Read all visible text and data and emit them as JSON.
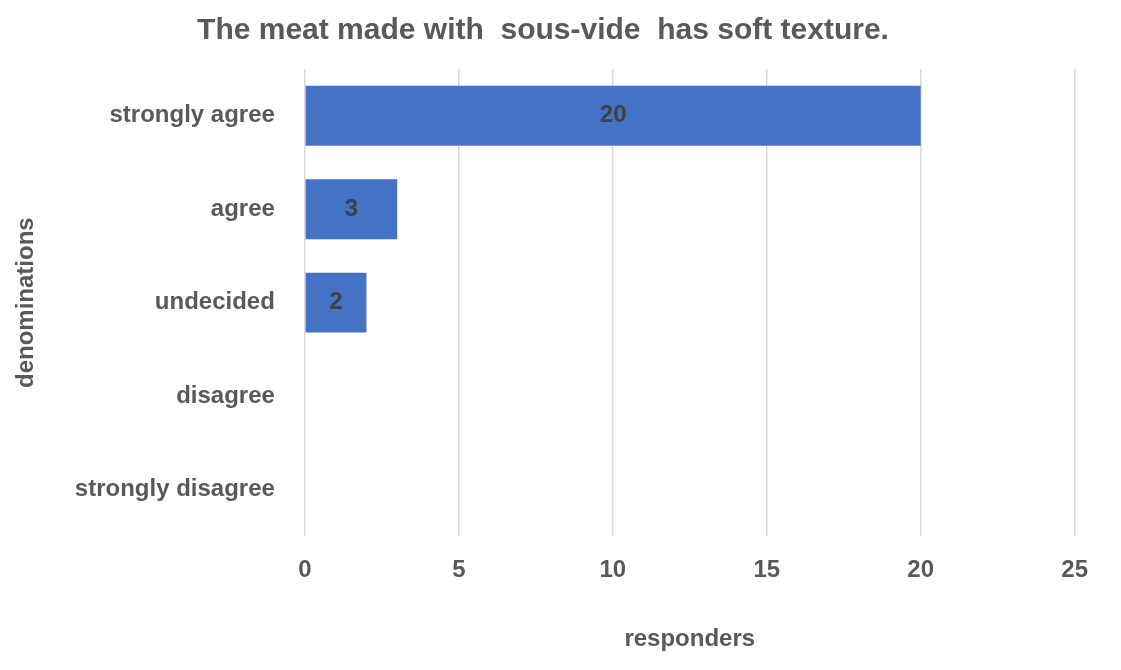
{
  "chart_data": {
    "type": "bar",
    "orientation": "horizontal",
    "title": "The meat made with  sous-vide  has soft texture.",
    "xlabel": "responders",
    "ylabel": "denominations",
    "categories": [
      "strongly agree",
      "agree",
      "undecided",
      "disagree",
      "strongly disagree"
    ],
    "values": [
      20,
      3,
      2,
      null,
      null
    ],
    "color": "#4472c4",
    "xlim": [
      0,
      25
    ],
    "xticks": [
      0,
      5,
      10,
      15,
      20,
      25
    ],
    "grid": "x",
    "data_labels": true
  }
}
